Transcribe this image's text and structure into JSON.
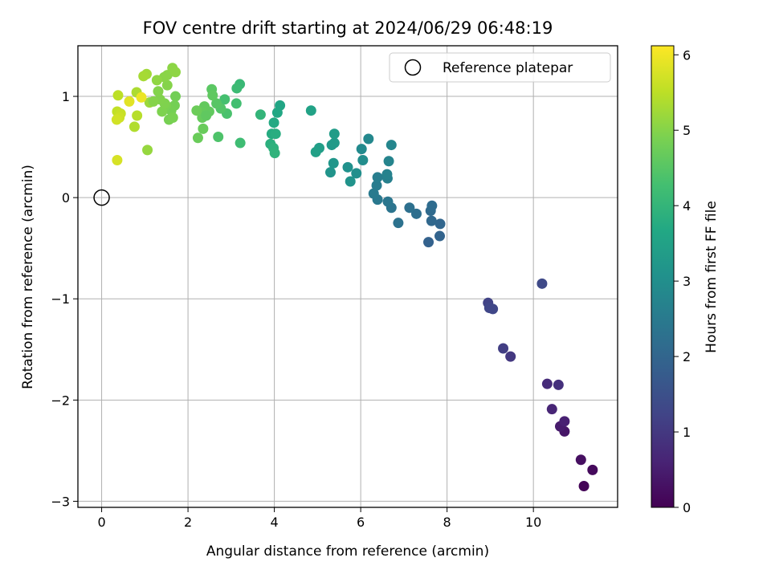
{
  "chart_data": {
    "type": "scatter",
    "title": "FOV centre drift starting at 2024/06/29 06:48:19",
    "xlabel": "Angular distance from reference (arcmin)",
    "ylabel": "Rotation from reference (arcmin)",
    "xlim": [
      -0.55,
      11.95
    ],
    "ylim": [
      -3.06,
      1.5
    ],
    "x_ticks": [
      0,
      2,
      4,
      6,
      8,
      10
    ],
    "y_ticks": [
      -3,
      -2,
      -1,
      0,
      1
    ],
    "x_tick_labels": [
      "0",
      "2",
      "4",
      "6",
      "8",
      "10"
    ],
    "y_tick_labels": [
      "−3",
      "−2",
      "−1",
      "0",
      "1"
    ],
    "grid": true,
    "colormap": "viridis",
    "colorbar": {
      "label": "Hours from first FF file",
      "min": 0,
      "max": 6.12,
      "ticks": [
        0,
        1,
        2,
        3,
        4,
        5,
        6
      ],
      "tick_labels": [
        "0",
        "1",
        "2",
        "3",
        "4",
        "5",
        "6"
      ]
    },
    "legend": {
      "placement": "top-right",
      "label": "Reference platepar"
    },
    "reference_point": {
      "x": 0,
      "y": 0
    },
    "points": [
      {
        "x": 11.17,
        "y": -2.85,
        "c": 0.05
      },
      {
        "x": 11.37,
        "y": -2.69,
        "c": 0.15
      },
      {
        "x": 11.1,
        "y": -2.59,
        "c": 0.25
      },
      {
        "x": 10.72,
        "y": -2.31,
        "c": 0.35
      },
      {
        "x": 10.62,
        "y": -2.26,
        "c": 0.45
      },
      {
        "x": 10.72,
        "y": -2.21,
        "c": 0.55
      },
      {
        "x": 10.43,
        "y": -2.09,
        "c": 0.65
      },
      {
        "x": 10.32,
        "y": -1.84,
        "c": 0.75
      },
      {
        "x": 10.58,
        "y": -1.85,
        "c": 0.85
      },
      {
        "x": 9.47,
        "y": -1.57,
        "c": 1.0
      },
      {
        "x": 9.3,
        "y": -1.49,
        "c": 1.1
      },
      {
        "x": 8.95,
        "y": -1.04,
        "c": 1.2
      },
      {
        "x": 8.98,
        "y": -1.09,
        "c": 1.3
      },
      {
        "x": 9.06,
        "y": -1.1,
        "c": 1.3
      },
      {
        "x": 10.2,
        "y": -0.85,
        "c": 1.35
      },
      {
        "x": 7.57,
        "y": -0.44,
        "c": 1.9
      },
      {
        "x": 7.83,
        "y": -0.38,
        "c": 1.95
      },
      {
        "x": 7.84,
        "y": -0.26,
        "c": 2.0
      },
      {
        "x": 7.64,
        "y": -0.23,
        "c": 2.05
      },
      {
        "x": 7.62,
        "y": -0.13,
        "c": 2.1
      },
      {
        "x": 7.65,
        "y": -0.08,
        "c": 2.15
      },
      {
        "x": 7.29,
        "y": -0.16,
        "c": 2.2
      },
      {
        "x": 7.13,
        "y": -0.1,
        "c": 2.25
      },
      {
        "x": 6.87,
        "y": -0.25,
        "c": 2.3
      },
      {
        "x": 6.71,
        "y": -0.1,
        "c": 2.35
      },
      {
        "x": 6.63,
        "y": -0.04,
        "c": 2.4
      },
      {
        "x": 6.39,
        "y": -0.02,
        "c": 2.45
      },
      {
        "x": 6.3,
        "y": 0.04,
        "c": 2.5
      },
      {
        "x": 6.37,
        "y": 0.12,
        "c": 2.55
      },
      {
        "x": 6.39,
        "y": 0.2,
        "c": 2.6
      },
      {
        "x": 6.62,
        "y": 0.19,
        "c": 2.65
      },
      {
        "x": 6.61,
        "y": 0.23,
        "c": 2.7
      },
      {
        "x": 6.65,
        "y": 0.36,
        "c": 2.75
      },
      {
        "x": 6.71,
        "y": 0.52,
        "c": 2.8
      },
      {
        "x": 6.18,
        "y": 0.58,
        "c": 2.85
      },
      {
        "x": 6.02,
        "y": 0.48,
        "c": 2.9
      },
      {
        "x": 6.05,
        "y": 0.37,
        "c": 2.95
      },
      {
        "x": 5.9,
        "y": 0.24,
        "c": 3.0
      },
      {
        "x": 5.7,
        "y": 0.3,
        "c": 3.05
      },
      {
        "x": 5.76,
        "y": 0.16,
        "c": 3.1
      },
      {
        "x": 5.3,
        "y": 0.25,
        "c": 3.15
      },
      {
        "x": 5.37,
        "y": 0.34,
        "c": 3.2
      },
      {
        "x": 5.33,
        "y": 0.52,
        "c": 3.25
      },
      {
        "x": 5.39,
        "y": 0.54,
        "c": 3.3
      },
      {
        "x": 5.39,
        "y": 0.63,
        "c": 3.35
      },
      {
        "x": 5.04,
        "y": 0.49,
        "c": 3.4
      },
      {
        "x": 4.96,
        "y": 0.45,
        "c": 3.45
      },
      {
        "x": 4.85,
        "y": 0.86,
        "c": 3.5
      },
      {
        "x": 4.13,
        "y": 0.91,
        "c": 3.6
      },
      {
        "x": 4.07,
        "y": 0.84,
        "c": 3.65
      },
      {
        "x": 3.99,
        "y": 0.74,
        "c": 3.7
      },
      {
        "x": 3.94,
        "y": 0.63,
        "c": 3.75
      },
      {
        "x": 4.03,
        "y": 0.63,
        "c": 3.8
      },
      {
        "x": 3.91,
        "y": 0.53,
        "c": 3.85
      },
      {
        "x": 3.98,
        "y": 0.49,
        "c": 3.9
      },
      {
        "x": 4.01,
        "y": 0.44,
        "c": 3.95
      },
      {
        "x": 3.68,
        "y": 0.82,
        "c": 4.0
      },
      {
        "x": 3.2,
        "y": 1.12,
        "c": 4.1
      },
      {
        "x": 3.13,
        "y": 1.08,
        "c": 4.15
      },
      {
        "x": 3.21,
        "y": 0.54,
        "c": 4.2
      },
      {
        "x": 3.12,
        "y": 0.93,
        "c": 4.25
      },
      {
        "x": 2.85,
        "y": 0.97,
        "c": 4.3
      },
      {
        "x": 2.9,
        "y": 0.83,
        "c": 4.35
      },
      {
        "x": 2.7,
        "y": 0.6,
        "c": 4.4
      },
      {
        "x": 2.76,
        "y": 0.88,
        "c": 4.45
      },
      {
        "x": 2.66,
        "y": 0.93,
        "c": 4.5
      },
      {
        "x": 2.55,
        "y": 1.07,
        "c": 4.55
      },
      {
        "x": 2.57,
        "y": 1.01,
        "c": 4.6
      },
      {
        "x": 2.49,
        "y": 0.85,
        "c": 4.62
      },
      {
        "x": 2.38,
        "y": 0.9,
        "c": 4.64
      },
      {
        "x": 2.34,
        "y": 0.84,
        "c": 4.66
      },
      {
        "x": 2.33,
        "y": 0.79,
        "c": 4.68
      },
      {
        "x": 2.35,
        "y": 0.68,
        "c": 4.7
      },
      {
        "x": 2.23,
        "y": 0.59,
        "c": 4.72
      },
      {
        "x": 2.2,
        "y": 0.86,
        "c": 4.74
      },
      {
        "x": 1.71,
        "y": 1.0,
        "c": 4.8
      },
      {
        "x": 1.69,
        "y": 0.91,
        "c": 4.82
      },
      {
        "x": 1.61,
        "y": 0.86,
        "c": 4.84
      },
      {
        "x": 1.56,
        "y": 0.77,
        "c": 4.86
      },
      {
        "x": 1.65,
        "y": 0.79,
        "c": 4.88
      },
      {
        "x": 1.49,
        "y": 0.91,
        "c": 4.9
      },
      {
        "x": 1.4,
        "y": 0.85,
        "c": 4.92
      },
      {
        "x": 1.46,
        "y": 0.93,
        "c": 4.94
      },
      {
        "x": 1.35,
        "y": 0.97,
        "c": 4.96
      },
      {
        "x": 1.31,
        "y": 1.05,
        "c": 4.98
      },
      {
        "x": 1.52,
        "y": 1.11,
        "c": 5.0
      },
      {
        "x": 1.45,
        "y": 1.19,
        "c": 5.02
      },
      {
        "x": 1.52,
        "y": 1.21,
        "c": 5.04
      },
      {
        "x": 1.64,
        "y": 1.28,
        "c": 5.06
      },
      {
        "x": 1.71,
        "y": 1.24,
        "c": 5.08
      },
      {
        "x": 1.28,
        "y": 1.16,
        "c": 5.1
      },
      {
        "x": 1.06,
        "y": 0.47,
        "c": 5.15
      },
      {
        "x": 1.11,
        "y": 0.94,
        "c": 5.2
      },
      {
        "x": 1.04,
        "y": 1.22,
        "c": 5.25
      },
      {
        "x": 0.97,
        "y": 1.2,
        "c": 5.3
      },
      {
        "x": 0.81,
        "y": 1.04,
        "c": 5.35
      },
      {
        "x": 0.76,
        "y": 0.7,
        "c": 5.4
      },
      {
        "x": 0.82,
        "y": 0.81,
        "c": 5.45
      },
      {
        "x": 0.38,
        "y": 1.01,
        "c": 5.5
      },
      {
        "x": 0.36,
        "y": 0.85,
        "c": 5.55
      },
      {
        "x": 0.44,
        "y": 0.83,
        "c": 5.6
      },
      {
        "x": 0.41,
        "y": 0.79,
        "c": 5.65
      },
      {
        "x": 0.35,
        "y": 0.77,
        "c": 5.7
      },
      {
        "x": 0.36,
        "y": 0.37,
        "c": 5.75
      },
      {
        "x": 0.64,
        "y": 0.95,
        "c": 5.85
      },
      {
        "x": 0.92,
        "y": 0.99,
        "c": 5.95
      },
      {
        "x": 1.2,
        "y": 0.95,
        "c": 5.0
      },
      {
        "x": 2.42,
        "y": 0.81,
        "c": 4.6
      }
    ]
  }
}
